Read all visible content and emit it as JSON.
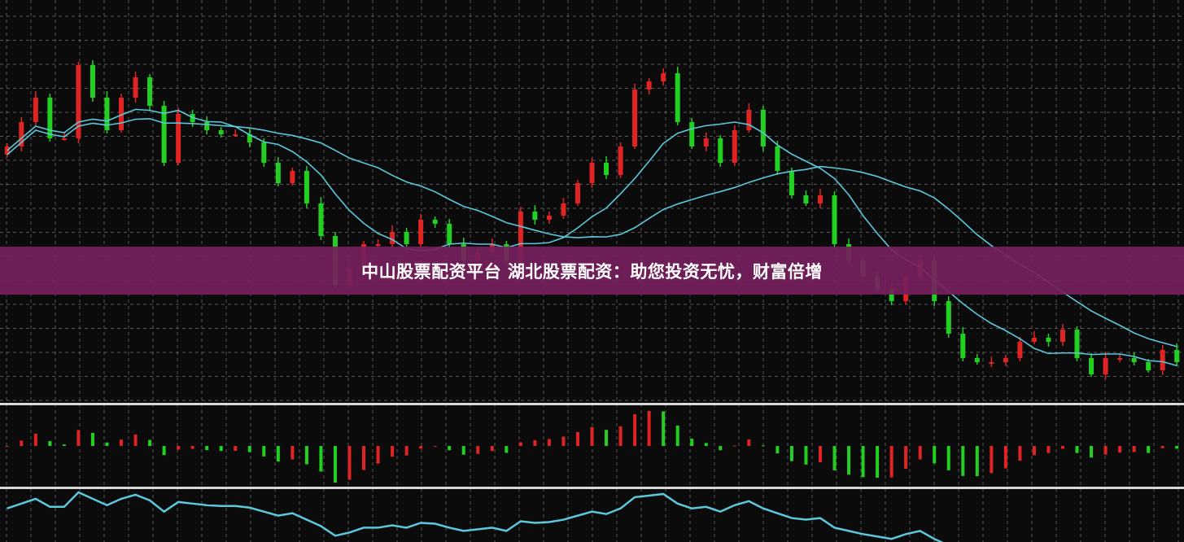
{
  "banner": {
    "title": "中山股票配资平台 湖北股票配资：助您投资无忧，财富倍增"
  },
  "colors": {
    "background": "#0b0b0b",
    "up": "#e02424",
    "down": "#22d022",
    "ma_line": "#5cc8dc",
    "grid": "#6a6a6a",
    "banner": "#76205c",
    "separator": "#d8d8d8"
  },
  "chart_data": {
    "type": "candlestick",
    "title": "",
    "xlabel": "",
    "ylabel": "",
    "grid": true,
    "legend": "none",
    "panels": [
      "price candlesticks with two moving averages",
      "histogram oscillator",
      "line oscillator"
    ],
    "closes": [
      320,
      350,
      380,
      330,
      330,
      420,
      380,
      340,
      380,
      405,
      370,
      300,
      360,
      350,
      340,
      335,
      335,
      325,
      300,
      275,
      290,
      250,
      210,
      150,
      170,
      200,
      200,
      215,
      200,
      230,
      225,
      200,
      180,
      190,
      200,
      180,
      240,
      230,
      235,
      250,
      275,
      300,
      285,
      320,
      390,
      400,
      410,
      350,
      320,
      330,
      300,
      340,
      365,
      320,
      290,
      260,
      250,
      260,
      200,
      180,
      160,
      145,
      130,
      160,
      180,
      130,
      90,
      60,
      55,
      55,
      60,
      80,
      85,
      80,
      95,
      60,
      40,
      60,
      60,
      55,
      45,
      70,
      55
    ]
  }
}
